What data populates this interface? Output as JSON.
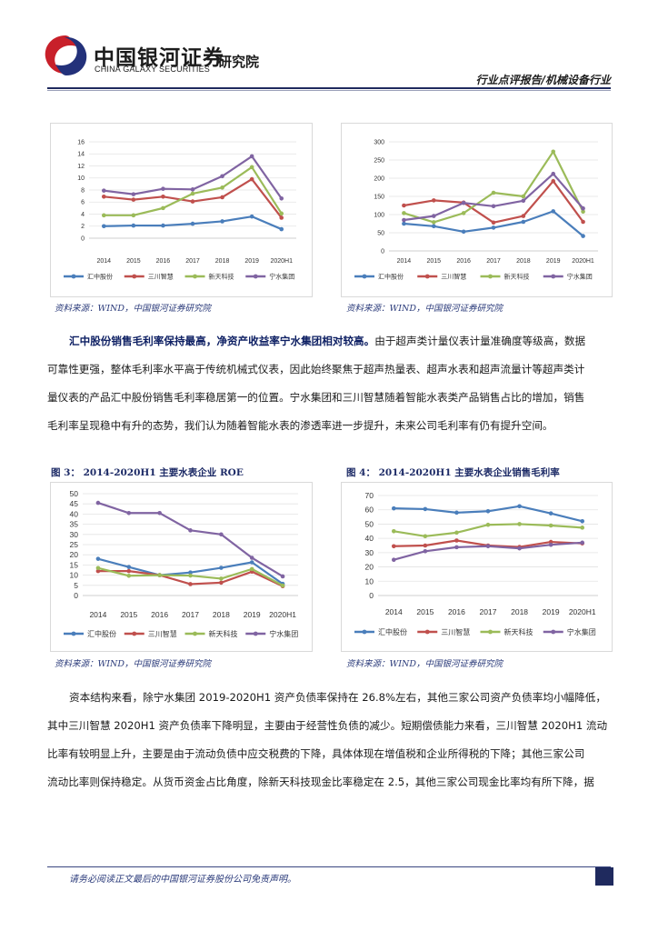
{
  "header": {
    "logo_cn": "中国银河证券",
    "logo_en": "CHINA GALAXY SECURITIES",
    "institute": "研究院",
    "category": "行业点评报告/机械设备行业"
  },
  "source_text": "资料来源：WIND，中国银河证券研究院",
  "para1": {
    "bold": "汇中股份销售毛利率保持最高，净资产收益率宁水集团相对较高。",
    "line1": "由于超声类计量仪表计量准确度等级高，数据",
    "line2": "可靠性更强，整体毛利率水平高于传统机械式仪表，因此始终聚焦于超声热量表、超声水表和超声流量计等超声类计",
    "line3": "量仪表的产品汇中股份销售毛利率稳居第一的位置。宁水集团和三川智慧随着智能水表类产品销售占比的增加，销售",
    "line4": "毛利率呈现稳中有升的态势，我们认为随着智能水表的渗透率进一步提升，未来公司毛利率有仍有提升空间。"
  },
  "fig3_title": "图 3： 2014-2020H1 主要水表企业 ROE",
  "fig4_title": "图 4： 2014-2020H1 主要水表企业销售毛利率",
  "para2": {
    "line1": "资本结构来看，除宁水集团 2019-2020H1 资产负债率保持在 26.8%左右，其他三家公司资产负债率均小幅降低，",
    "line2": "其中三川智慧 2020H1 资产负债率下降明显，主要由于经营性负债的减少。短期偿债能力来看，三川智慧 2020H1 流动",
    "line3": "比率有较明显上升，主要是由于流动负债中应交税费的下降，具体体现在增值税和企业所得税的下降；其他三家公司",
    "line4": "流动比率则保持稳定。从货币资金占比角度，除新天科技现金比率稳定在 2.5，其他三家公司现金比率均有所下降，据"
  },
  "footer": {
    "disclaimer": "请务必阅读正文最后的中国银河证券股份公司免责声明。"
  },
  "colors": {
    "汇中股份": "#4a7ebb",
    "三川智慧": "#c0504d",
    "新天科技": "#9bbb59",
    "宁水集团": "#8064a2"
  },
  "chart_data": [
    {
      "type": "line",
      "x": [
        "2014",
        "2015",
        "2016",
        "2017",
        "2018",
        "2019",
        "2020H1"
      ],
      "yticks": [
        0,
        2,
        4,
        6,
        8,
        10,
        12,
        14,
        16
      ],
      "ylim": [
        0,
        16
      ],
      "series": [
        {
          "name": "汇中股份",
          "values": [
            2.0,
            2.1,
            2.1,
            2.4,
            2.8,
            3.6,
            1.5
          ]
        },
        {
          "name": "三川智慧",
          "values": [
            6.9,
            6.4,
            6.9,
            6.1,
            6.8,
            9.8,
            3.4
          ]
        },
        {
          "name": "新天科技",
          "values": [
            3.8,
            3.8,
            5.0,
            7.4,
            8.4,
            11.8,
            4.1
          ]
        },
        {
          "name": "宁水集团",
          "values": [
            7.9,
            7.3,
            8.2,
            8.1,
            10.3,
            13.6,
            6.6
          ]
        }
      ]
    },
    {
      "type": "line",
      "x": [
        "2014",
        "2015",
        "2016",
        "2017",
        "2018",
        "2019",
        "2020H1"
      ],
      "yticks": [
        0,
        50,
        100,
        150,
        200,
        250,
        300
      ],
      "ylim": [
        0,
        300
      ],
      "series": [
        {
          "name": "汇中股份",
          "values": [
            75,
            68,
            53,
            64,
            80,
            109,
            41
          ]
        },
        {
          "name": "三川智慧",
          "values": [
            125,
            139,
            133,
            78,
            96,
            192,
            80
          ]
        },
        {
          "name": "新天科技",
          "values": [
            104,
            79,
            104,
            160,
            150,
            273,
            108
          ]
        },
        {
          "name": "宁水集团",
          "values": [
            85,
            96,
            132,
            123,
            138,
            212,
            117
          ]
        }
      ]
    },
    {
      "type": "line",
      "title": "2014-2020H1 主要水表企业 ROE",
      "x": [
        "2014",
        "2015",
        "2016",
        "2017",
        "2018",
        "2019",
        "2020H1"
      ],
      "yticks": [
        0,
        5,
        10,
        15,
        20,
        25,
        30,
        35,
        40,
        45,
        50
      ],
      "ylim": [
        0,
        50
      ],
      "series": [
        {
          "name": "汇中股份",
          "values": [
            18,
            14,
            10,
            11.3,
            13.6,
            16.3,
            5.7
          ]
        },
        {
          "name": "三川智慧",
          "values": [
            12,
            12,
            10,
            5.6,
            6.3,
            11.7,
            4.6
          ]
        },
        {
          "name": "新天科技",
          "values": [
            13.5,
            9.7,
            10,
            9.8,
            8.3,
            13,
            4.9
          ]
        },
        {
          "name": "宁水集团",
          "values": [
            45.5,
            40.5,
            40.5,
            32,
            30,
            18.5,
            9.4
          ]
        }
      ]
    },
    {
      "type": "line",
      "title": "2014-2020H1 主要水表企业销售毛利率",
      "x": [
        "2014",
        "2015",
        "2016",
        "2017",
        "2018",
        "2019",
        "2020H1"
      ],
      "yticks": [
        0,
        10,
        20,
        30,
        40,
        50,
        60,
        70
      ],
      "ylim": [
        0,
        70
      ],
      "series": [
        {
          "name": "汇中股份",
          "values": [
            61,
            60.5,
            58,
            59,
            62.5,
            57.5,
            52
          ]
        },
        {
          "name": "三川智慧",
          "values": [
            34.5,
            35,
            38.5,
            35,
            34,
            37.5,
            36.5
          ]
        },
        {
          "name": "新天科技",
          "values": [
            45,
            41.5,
            44,
            49.5,
            50,
            49,
            47.5
          ]
        },
        {
          "name": "宁水集团",
          "values": [
            25,
            31,
            33.8,
            34.5,
            33,
            35.5,
            37
          ]
        }
      ]
    }
  ]
}
